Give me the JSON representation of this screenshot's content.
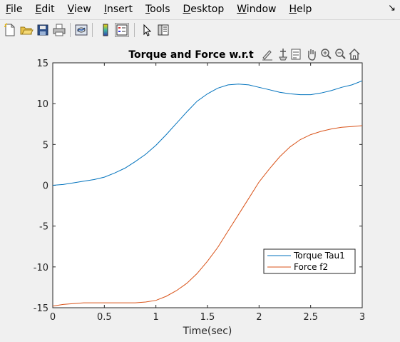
{
  "menubar": {
    "items": [
      {
        "accel": "F",
        "rest": "ile"
      },
      {
        "accel": "E",
        "rest": "dit"
      },
      {
        "accel": "V",
        "rest": "iew"
      },
      {
        "accel": "I",
        "rest": "nsert"
      },
      {
        "accel": "T",
        "rest": "ools"
      },
      {
        "accel": "D",
        "rest": "esktop"
      },
      {
        "accel": "W",
        "rest": "indow"
      },
      {
        "accel": "H",
        "rest": "elp"
      }
    ],
    "overflow_icon": "curved-arrow-icon"
  },
  "toolbar": {
    "buttons": [
      "new-figure-icon",
      "open-file-icon",
      "save-icon",
      "print-icon",
      "link-plot-icon",
      "colorbar-icon",
      "legend-icon",
      "pointer-icon",
      "property-inspector-icon"
    ]
  },
  "axes_toolbar": {
    "icons": [
      "brush-icon",
      "data-cursor-icon",
      "insert-legend-icon",
      "pan-icon",
      "zoom-in-icon",
      "zoom-out-icon",
      "home-icon"
    ]
  },
  "chart_data": {
    "type": "line",
    "title": "Torque and Force w.r.t",
    "xlabel": "Time(sec)",
    "ylabel": "",
    "xlim": [
      0,
      3
    ],
    "ylim": [
      -15,
      15
    ],
    "xticks": [
      0,
      0.5,
      1,
      1.5,
      2,
      2.5,
      3
    ],
    "xtick_labels": [
      "0",
      "0.5",
      "1",
      "1.5",
      "2",
      "2.5",
      "3"
    ],
    "yticks": [
      -15,
      -10,
      -5,
      0,
      5,
      10,
      15
    ],
    "ytick_labels": [
      "-15",
      "-10",
      "-5",
      "0",
      "5",
      "10",
      "15"
    ],
    "grid": false,
    "legend_position": "lower-right",
    "series": [
      {
        "name": "Torque Tau1",
        "color": "#0072bd",
        "x": [
          0,
          0.1,
          0.2,
          0.3,
          0.4,
          0.5,
          0.6,
          0.7,
          0.8,
          0.9,
          1.0,
          1.1,
          1.2,
          1.3,
          1.4,
          1.5,
          1.6,
          1.7,
          1.8,
          1.9,
          2.0,
          2.1,
          2.2,
          2.3,
          2.4,
          2.5,
          2.6,
          2.7,
          2.8,
          2.9,
          3.0
        ],
        "y": [
          0,
          0.1,
          0.3,
          0.5,
          0.7,
          1.0,
          1.5,
          2.1,
          2.9,
          3.8,
          4.9,
          6.2,
          7.6,
          9.0,
          10.3,
          11.2,
          11.9,
          12.3,
          12.4,
          12.3,
          12.0,
          11.7,
          11.4,
          11.2,
          11.1,
          11.1,
          11.3,
          11.6,
          12.0,
          12.3,
          12.8
        ]
      },
      {
        "name": "Force f2",
        "color": "#d95319",
        "x": [
          0,
          0.1,
          0.2,
          0.3,
          0.4,
          0.5,
          0.6,
          0.7,
          0.8,
          0.9,
          1.0,
          1.1,
          1.2,
          1.3,
          1.4,
          1.5,
          1.6,
          1.7,
          1.8,
          1.9,
          2.0,
          2.1,
          2.2,
          2.3,
          2.4,
          2.5,
          2.6,
          2.7,
          2.8,
          2.9,
          3.0
        ],
        "y": [
          -14.8,
          -14.6,
          -14.5,
          -14.4,
          -14.4,
          -14.4,
          -14.4,
          -14.4,
          -14.4,
          -14.3,
          -14.1,
          -13.6,
          -12.9,
          -12.0,
          -10.8,
          -9.3,
          -7.6,
          -5.6,
          -3.6,
          -1.6,
          0.4,
          2.0,
          3.5,
          4.7,
          5.6,
          6.2,
          6.6,
          6.9,
          7.1,
          7.2,
          7.3
        ]
      }
    ]
  }
}
